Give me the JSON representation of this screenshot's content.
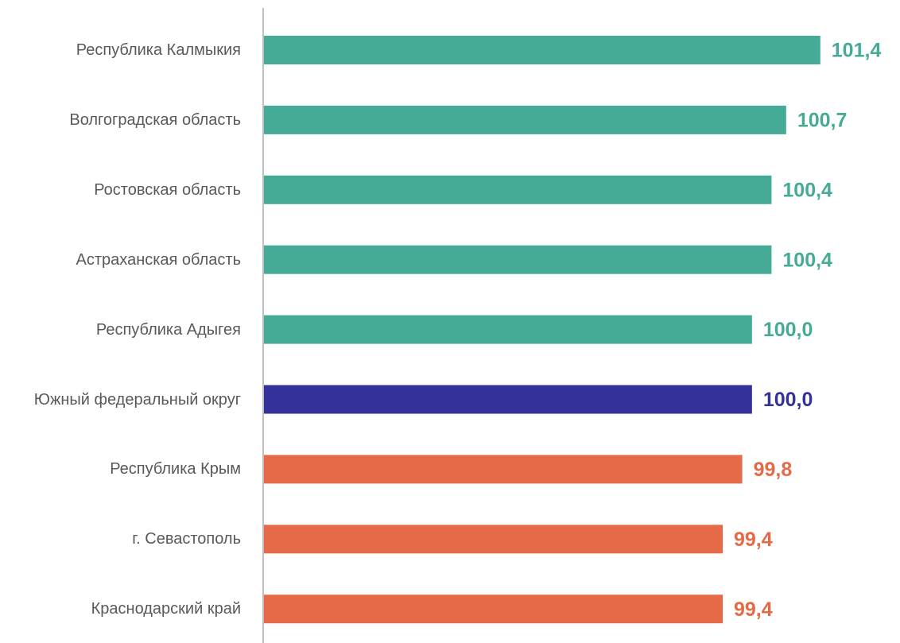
{
  "chart_data": {
    "type": "bar",
    "orientation": "horizontal",
    "categories": [
      "Республика Калмыкия",
      "Волгоградская область",
      "Ростовская область",
      "Астраханская область",
      "Республика Адыгея",
      "Южный федеральный округ",
      "Республика Крым",
      "г. Севастополь",
      "Краснодарский край"
    ],
    "values": [
      101.4,
      100.7,
      100.4,
      100.4,
      100.0,
      100.0,
      99.8,
      99.4,
      99.4
    ],
    "value_labels": [
      "101,4",
      "100,7",
      "100,4",
      "100,4",
      "100,0",
      "100,0",
      "99,8",
      "99,4",
      "99,4"
    ],
    "colors": [
      "#45ab97",
      "#45ab97",
      "#45ab97",
      "#45ab97",
      "#45ab97",
      "#35319a",
      "#e56a47",
      "#e56a47",
      "#e56a47"
    ],
    "xlim": [
      90,
      103
    ]
  }
}
